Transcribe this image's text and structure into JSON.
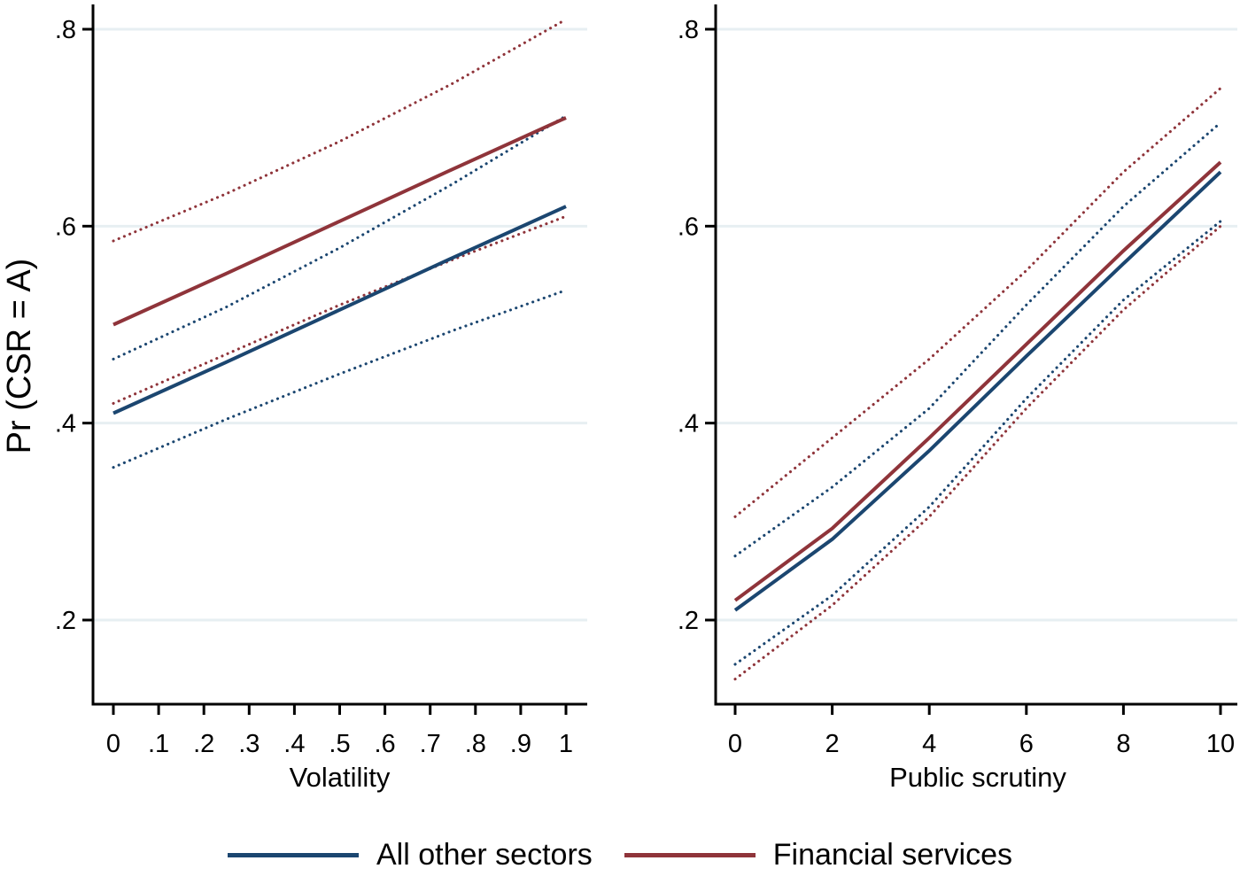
{
  "figure": {
    "background": "#ffffff",
    "text_color": "#000000",
    "gridline_color": "#e7eff2",
    "ylabel": "Pr (CSR = A)"
  },
  "legend": {
    "items": [
      {
        "label": "All other sectors",
        "color": "#1b4670",
        "style": "solid"
      },
      {
        "label": "Financial services",
        "color": "#8f343a",
        "style": "solid"
      }
    ]
  },
  "chart_data": [
    {
      "type": "line",
      "panel": "left",
      "title": "",
      "xlabel": "Volatility",
      "ylabel": "Pr (CSR = A)",
      "xlim": [
        0,
        1
      ],
      "ylim": [
        0.115,
        0.825
      ],
      "grid": "horizontal-only",
      "yticks": [
        0.2,
        0.4,
        0.6,
        0.8
      ],
      "ytick_labels": [
        ".2",
        ".4",
        ".6",
        ".8"
      ],
      "xticks": [
        0,
        0.1,
        0.2,
        0.3,
        0.4,
        0.5,
        0.6,
        0.7,
        0.8,
        0.9,
        1
      ],
      "xtick_labels": [
        "0",
        ".1",
        ".2",
        ".3",
        ".4",
        ".5",
        ".6",
        ".7",
        ".8",
        ".9",
        "1"
      ],
      "x": [
        0,
        0.25,
        0.5,
        0.75,
        1
      ],
      "series": [
        {
          "name": "All other sectors 95% CI upper",
          "color": "#1b4670",
          "style": "dotted",
          "values": [
            0.465,
            0.518,
            0.578,
            0.643,
            0.712
          ]
        },
        {
          "name": "All other sectors 95% CI lower",
          "color": "#1b4670",
          "style": "dotted",
          "values": [
            0.355,
            0.404,
            0.45,
            0.494,
            0.535
          ]
        },
        {
          "name": "Financial services 95% CI upper",
          "color": "#8f343a",
          "style": "dotted",
          "values": [
            0.585,
            0.633,
            0.686,
            0.745,
            0.81
          ]
        },
        {
          "name": "Financial services 95% CI lower",
          "color": "#8f343a",
          "style": "dotted",
          "values": [
            0.42,
            0.47,
            0.52,
            0.566,
            0.61
          ]
        },
        {
          "name": "All other sectors",
          "color": "#1b4670",
          "style": "solid",
          "values": [
            0.41,
            0.462,
            0.515,
            0.568,
            0.62
          ]
        },
        {
          "name": "Financial services",
          "color": "#8f343a",
          "style": "solid",
          "values": [
            0.5,
            0.552,
            0.605,
            0.658,
            0.71
          ]
        }
      ]
    },
    {
      "type": "line",
      "panel": "right",
      "title": "",
      "xlabel": "Public scrutiny",
      "ylabel": "",
      "xlim": [
        0,
        10
      ],
      "ylim": [
        0.115,
        0.825
      ],
      "grid": "horizontal-only",
      "yticks": [
        0.2,
        0.4,
        0.6,
        0.8
      ],
      "ytick_labels": [
        ".2",
        ".4",
        ".6",
        ".8"
      ],
      "xticks": [
        0,
        2,
        4,
        6,
        8,
        10
      ],
      "xtick_labels": [
        "0",
        "2",
        "4",
        "6",
        "8",
        "10"
      ],
      "x": [
        0,
        2,
        4,
        6,
        8,
        10
      ],
      "series": [
        {
          "name": "All other sectors 95% CI upper",
          "color": "#1b4670",
          "style": "dotted",
          "values": [
            0.265,
            0.335,
            0.415,
            0.52,
            0.62,
            0.705
          ]
        },
        {
          "name": "All other sectors 95% CI lower",
          "color": "#1b4670",
          "style": "dotted",
          "values": [
            0.155,
            0.225,
            0.315,
            0.425,
            0.525,
            0.605
          ]
        },
        {
          "name": "Financial services 95% CI upper",
          "color": "#8f343a",
          "style": "dotted",
          "values": [
            0.305,
            0.385,
            0.465,
            0.555,
            0.655,
            0.74
          ]
        },
        {
          "name": "Financial services 95% CI lower",
          "color": "#8f343a",
          "style": "dotted",
          "values": [
            0.14,
            0.215,
            0.305,
            0.415,
            0.515,
            0.6
          ]
        },
        {
          "name": "All other sectors",
          "color": "#1b4670",
          "style": "solid",
          "values": [
            0.21,
            0.282,
            0.372,
            0.468,
            0.562,
            0.655
          ]
        },
        {
          "name": "Financial services",
          "color": "#8f343a",
          "style": "solid",
          "values": [
            0.22,
            0.293,
            0.385,
            0.48,
            0.575,
            0.665
          ]
        }
      ]
    }
  ]
}
